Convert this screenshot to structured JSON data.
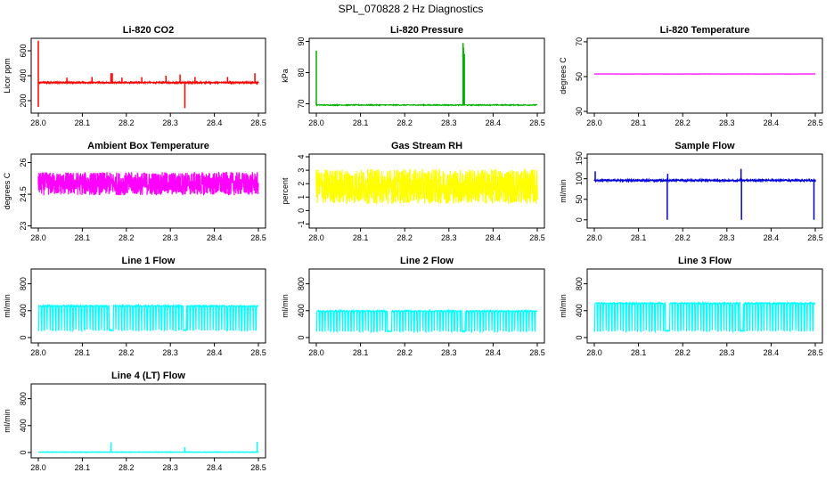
{
  "title": "SPL_070828  2 Hz Diagnostics",
  "chart_data": [
    {
      "type": "line",
      "title": "Li-820 CO2",
      "ylabel": "Licor ppm",
      "color": "#ff0000",
      "xlim": [
        28.0,
        28.5
      ],
      "ylim": [
        100,
        700
      ],
      "yticks": [
        200,
        400,
        600
      ],
      "xticks": [
        28.0,
        28.1,
        28.2,
        28.3,
        28.4,
        28.5
      ],
      "series": {
        "base": 345,
        "noise": 4,
        "spikes": [
          {
            "x": 28.0,
            "y": 680
          },
          {
            "x": 28.0,
            "y": 150
          },
          {
            "x": 28.065,
            "y": 385
          },
          {
            "x": 28.122,
            "y": 390
          },
          {
            "x": 28.165,
            "y": 420
          },
          {
            "x": 28.168,
            "y": 420
          },
          {
            "x": 28.19,
            "y": 385
          },
          {
            "x": 28.235,
            "y": 388
          },
          {
            "x": 28.29,
            "y": 400
          },
          {
            "x": 28.322,
            "y": 410
          },
          {
            "x": 28.333,
            "y": 140
          },
          {
            "x": 28.356,
            "y": 390
          },
          {
            "x": 28.43,
            "y": 390
          },
          {
            "x": 28.492,
            "y": 420
          }
        ]
      }
    },
    {
      "type": "line",
      "title": "Li-820 Pressure",
      "ylabel": "kPa",
      "color": "#00b000",
      "xlim": [
        28.0,
        28.5
      ],
      "ylim": [
        67,
        91
      ],
      "yticks": [
        70,
        80,
        90
      ],
      "xticks": [
        28.0,
        28.1,
        28.2,
        28.3,
        28.4,
        28.5
      ],
      "series": {
        "base": 69.6,
        "noise": 0.15,
        "spikes": [
          {
            "x": 28.0,
            "y": 87
          },
          {
            "x": 28.332,
            "y": 89.5
          },
          {
            "x": 28.333,
            "y": 88
          },
          {
            "x": 28.335,
            "y": 86
          }
        ]
      }
    },
    {
      "type": "line",
      "title": "Li-820 Temperature",
      "ylabel": "degrees C",
      "color": "#ff00ff",
      "xlim": [
        28.0,
        28.5
      ],
      "ylim": [
        29,
        72
      ],
      "yticks": [
        30,
        50,
        70
      ],
      "xticks": [
        28.0,
        28.1,
        28.2,
        28.3,
        28.4,
        28.5
      ],
      "series": {
        "base": 51.5,
        "noise": 0.05,
        "spikes": []
      }
    },
    {
      "type": "line",
      "title": "Ambient Box Temperature",
      "ylabel": "degrees C",
      "color": "#ff00ff",
      "xlim": [
        28.0,
        28.5
      ],
      "ylim": [
        22.9,
        26.4
      ],
      "yticks": [
        23.0,
        24.5,
        26.0
      ],
      "xticks": [
        28.0,
        28.1,
        28.2,
        28.3,
        28.4,
        28.5
      ],
      "series": {
        "base": 25.0,
        "noise": 0.55,
        "spikes": []
      }
    },
    {
      "type": "line",
      "title": "Gas Stream RH",
      "ylabel": "percent",
      "color": "#ffff00",
      "xlim": [
        28.0,
        28.5
      ],
      "ylim": [
        -1.3,
        4.2
      ],
      "yticks": [
        -1,
        0,
        1,
        2,
        3,
        4
      ],
      "xticks": [
        28.0,
        28.1,
        28.2,
        28.3,
        28.4,
        28.5
      ],
      "series": {
        "base": 1.8,
        "noise": 1.3,
        "spikes": []
      }
    },
    {
      "type": "line",
      "title": "Sample Flow",
      "ylabel": "ml/min",
      "color": "#0000dd",
      "xlim": [
        28.0,
        28.5
      ],
      "ylim": [
        -20,
        160
      ],
      "yticks": [
        0,
        50,
        100,
        150
      ],
      "xticks": [
        28.0,
        28.1,
        28.2,
        28.3,
        28.4,
        28.5
      ],
      "series": {
        "base": 96,
        "noise": 2,
        "spikes": [
          {
            "x": 28.002,
            "y": 118
          },
          {
            "x": 28.165,
            "y": 0
          },
          {
            "x": 28.166,
            "y": 112
          },
          {
            "x": 28.332,
            "y": 124
          },
          {
            "x": 28.333,
            "y": 0
          },
          {
            "x": 28.497,
            "y": 0
          }
        ]
      }
    },
    {
      "type": "line",
      "title": "Line 1 Flow",
      "ylabel": "ml/min",
      "color": "#00ffff",
      "xlim": [
        28.0,
        28.5
      ],
      "ylim": [
        -80,
        1020
      ],
      "yticks": [
        0,
        400,
        800
      ],
      "xticks": [
        28.0,
        28.1,
        28.2,
        28.3,
        28.4,
        28.5
      ],
      "series": {
        "square": true,
        "high": 470,
        "low": 110
      }
    },
    {
      "type": "line",
      "title": "Line 2 Flow",
      "ylabel": "ml/min",
      "color": "#00ffff",
      "xlim": [
        28.0,
        28.5
      ],
      "ylim": [
        -80,
        1020
      ],
      "yticks": [
        0,
        400,
        800
      ],
      "xticks": [
        28.0,
        28.1,
        28.2,
        28.3,
        28.4,
        28.5
      ],
      "series": {
        "square": true,
        "high": 395,
        "low": 95
      }
    },
    {
      "type": "line",
      "title": "Line 3 Flow",
      "ylabel": "ml/min",
      "color": "#00ffff",
      "xlim": [
        28.0,
        28.5
      ],
      "ylim": [
        -80,
        1020
      ],
      "yticks": [
        0,
        400,
        800
      ],
      "xticks": [
        28.0,
        28.1,
        28.2,
        28.3,
        28.4,
        28.5
      ],
      "series": {
        "square": true,
        "high": 510,
        "low": 100
      }
    },
    {
      "type": "line",
      "title": "Line 4 (LT) Flow",
      "ylabel": "ml/min",
      "color": "#00ffff",
      "xlim": [
        28.0,
        28.5
      ],
      "ylim": [
        -80,
        1020
      ],
      "yticks": [
        0,
        400,
        800
      ],
      "xticks": [
        28.0,
        28.1,
        28.2,
        28.3,
        28.4,
        28.5
      ],
      "series": {
        "base": 5,
        "noise": 2,
        "spikes": [
          {
            "x": 28.165,
            "y": 150
          },
          {
            "x": 28.333,
            "y": 80
          },
          {
            "x": 28.497,
            "y": 160
          }
        ]
      }
    }
  ]
}
